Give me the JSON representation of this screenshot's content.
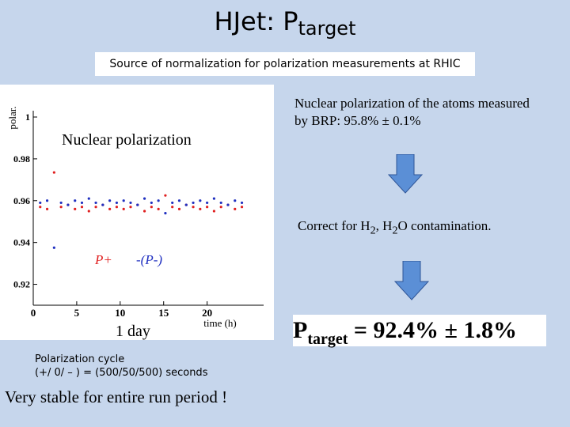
{
  "title": {
    "main": "HJet: P",
    "sub": "target"
  },
  "subtitle": "Source of normalization for polarization measurements at RHIC",
  "brp_note": "Nuclear polarization of the atoms measured by BRP: 95.8% ± 0.1%",
  "correction": {
    "a": "Correct for H",
    "b": "2",
    "c": ", H",
    "d": "2",
    "e": "O contamination."
  },
  "result": {
    "main": "P",
    "sub": "target",
    "rest": " = 92.4% ± 1.8%"
  },
  "day_label": "1 day",
  "cycle": {
    "line1": "Polarization cycle",
    "line2": "(+/ 0/ – ) = (500/50/500) seconds"
  },
  "conclusion": "Very stable for entire run period !",
  "chart_data": {
    "type": "scatter",
    "annotation": "Nuclear polarization",
    "x_label": "time (h)",
    "y_label": "polar.",
    "xlim": [
      0,
      26.5
    ],
    "xticks": [
      0,
      5,
      10,
      15,
      20
    ],
    "ylim": [
      0.91,
      1
    ],
    "yticks": [
      0.92,
      0.94,
      0.96,
      0.98,
      1
    ],
    "x": [
      0.8,
      1.6,
      2.4,
      3.2,
      4.0,
      4.8,
      5.6,
      6.4,
      7.2,
      8.0,
      8.8,
      9.6,
      10.4,
      11.2,
      12.0,
      12.8,
      13.6,
      14.4,
      15.2,
      16.0,
      16.8,
      17.6,
      18.4,
      19.2,
      20.0,
      20.8,
      21.6,
      22.4,
      23.2,
      24.0
    ],
    "series": [
      {
        "name": "P+",
        "color": "#e02020",
        "values": [
          0.957,
          0.956,
          0.9735,
          0.957,
          0.958,
          0.956,
          0.957,
          0.955,
          0.957,
          0.958,
          0.956,
          0.957,
          0.956,
          0.957,
          0.958,
          0.955,
          0.957,
          0.956,
          0.9625,
          0.957,
          0.956,
          0.958,
          0.957,
          0.956,
          0.957,
          0.955,
          0.957,
          0.958,
          0.956,
          0.957
        ]
      },
      {
        "name": "-(P-)",
        "color": "#2030c0",
        "values": [
          0.959,
          0.96,
          0.9375,
          0.959,
          0.958,
          0.96,
          0.959,
          0.961,
          0.959,
          0.958,
          0.96,
          0.959,
          0.96,
          0.959,
          0.958,
          0.961,
          0.959,
          0.96,
          0.954,
          0.959,
          0.96,
          0.958,
          0.959,
          0.96,
          0.959,
          0.961,
          0.959,
          0.958,
          0.96,
          0.959
        ]
      }
    ]
  }
}
